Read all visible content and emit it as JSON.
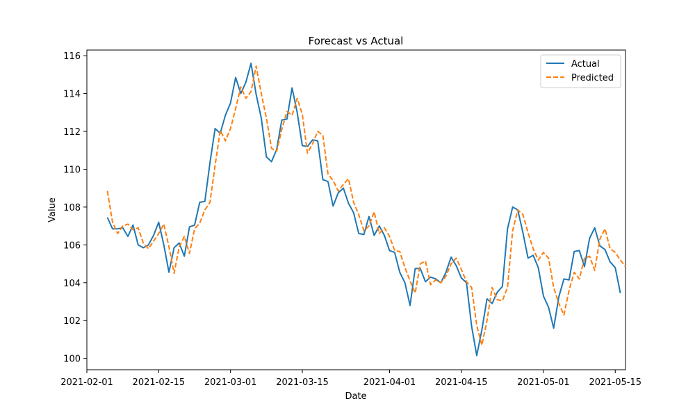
{
  "chart_data": {
    "type": "line",
    "title": "Forecast vs Actual",
    "xlabel": "Date",
    "ylabel": "Value",
    "legend_placement": "top-right",
    "grid": false,
    "x_start": "2021-02-05",
    "x_step_days": 1,
    "xlim": [
      "2021-02-01",
      "2021-05-17"
    ],
    "ylim": [
      99.4,
      116.3
    ],
    "x_ticks": [
      "2021-02-01",
      "2021-02-15",
      "2021-03-01",
      "2021-03-15",
      "2021-04-01",
      "2021-04-15",
      "2021-05-01",
      "2021-05-15"
    ],
    "y_ticks": [
      100,
      102,
      104,
      106,
      108,
      110,
      112,
      114,
      116
    ],
    "series": [
      {
        "name": "Actual",
        "color": "#1f77b4",
        "dash": "solid",
        "values": [
          107.45,
          106.85,
          106.85,
          106.9,
          106.45,
          107.05,
          106.0,
          105.85,
          106.0,
          106.5,
          107.2,
          106.0,
          104.55,
          105.85,
          106.1,
          105.4,
          106.95,
          107.05,
          108.25,
          108.3,
          110.35,
          112.15,
          111.9,
          112.85,
          113.5,
          114.85,
          114.0,
          114.6,
          115.6,
          113.95,
          112.7,
          110.65,
          110.4,
          111.05,
          112.6,
          112.65,
          114.3,
          113.0,
          111.25,
          111.2,
          111.55,
          111.5,
          109.45,
          109.35,
          108.05,
          108.75,
          109.0,
          108.2,
          107.7,
          106.6,
          106.55,
          107.5,
          106.5,
          107.0,
          106.5,
          105.7,
          105.6,
          104.55,
          104.0,
          102.8,
          104.75,
          104.75,
          104.05,
          104.3,
          104.2,
          104.0,
          104.55,
          105.35,
          104.9,
          104.25,
          104.0,
          101.7,
          100.15,
          101.5,
          103.15,
          102.9,
          103.5,
          103.8,
          106.85,
          108.0,
          107.85,
          106.65,
          105.3,
          105.45,
          104.8,
          103.3,
          102.7,
          101.6,
          103.25,
          104.2,
          104.15,
          105.65,
          105.7,
          104.85,
          106.35,
          106.9,
          105.95,
          105.75,
          105.1,
          104.8,
          103.45
        ]
      },
      {
        "name": "Predicted",
        "color": "#ff7f0e",
        "dash": "dashed",
        "values": [
          108.85,
          107.2,
          106.6,
          107.0,
          107.1,
          106.8,
          106.9,
          106.1,
          105.8,
          106.2,
          106.6,
          107.1,
          105.9,
          104.5,
          105.9,
          106.45,
          105.55,
          106.85,
          107.15,
          107.85,
          108.25,
          110.2,
          112.05,
          111.5,
          112.15,
          113.2,
          114.35,
          113.75,
          114.1,
          115.45,
          114.0,
          112.7,
          111.1,
          110.95,
          112.1,
          113.05,
          112.85,
          113.75,
          112.9,
          110.85,
          111.35,
          112.0,
          111.8,
          109.75,
          109.4,
          108.85,
          109.2,
          109.5,
          108.25,
          107.6,
          106.75,
          107.0,
          107.75,
          106.6,
          106.9,
          106.45,
          105.7,
          105.65,
          104.8,
          104.1,
          103.45,
          105.0,
          105.15,
          103.9,
          104.15,
          104.0,
          104.35,
          105.0,
          105.3,
          104.7,
          104.05,
          103.75,
          101.75,
          100.7,
          102.0,
          103.75,
          103.1,
          103.05,
          103.75,
          106.75,
          107.85,
          107.6,
          106.65,
          105.8,
          105.2,
          105.6,
          105.3,
          103.75,
          102.9,
          102.3,
          103.6,
          104.55,
          104.2,
          105.3,
          105.4,
          104.65,
          106.3,
          106.85,
          105.8,
          105.6,
          105.2,
          104.85
        ]
      }
    ]
  }
}
